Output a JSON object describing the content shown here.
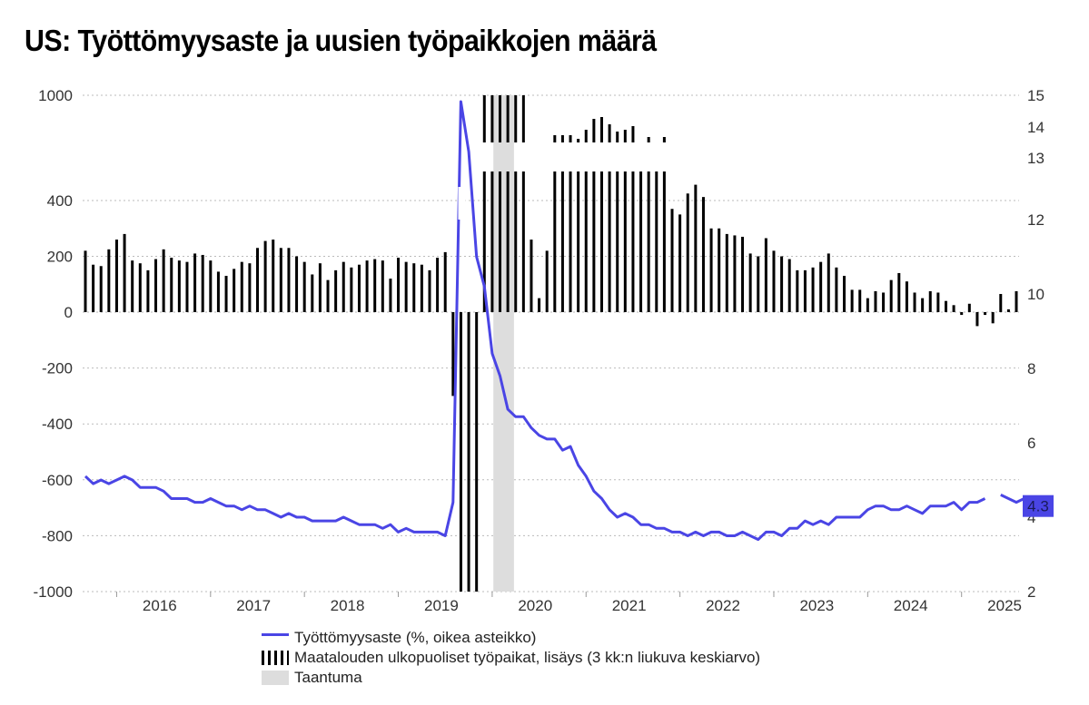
{
  "title": "US: Työttömyysaste ja uusien työpaikkojen määrä",
  "chart_data": {
    "type": "bar+line",
    "title": "US: Työttömyysaste ja uusien työpaikkojen määrä",
    "x_labels": [
      "2016",
      "2017",
      "2018",
      "2019",
      "2020",
      "2021",
      "2022",
      "2023",
      "2024",
      "2025"
    ],
    "left_axis": {
      "ticks": [
        1000,
        400,
        200,
        0,
        -200,
        -400,
        -600,
        -800,
        -1000
      ],
      "range": [
        -1000,
        1000
      ]
    },
    "right_axis": {
      "ticks": [
        15,
        14,
        13,
        12,
        10,
        8,
        6,
        4,
        2
      ],
      "range": [
        2,
        15
      ]
    },
    "bar_series": {
      "name": "Maatalouden ulkopuoliset työpaikat, lisäys (3 kk:n liukuva keskiarvo)",
      "start": "2015-09",
      "values": [
        220,
        170,
        165,
        225,
        260,
        280,
        185,
        175,
        150,
        190,
        225,
        195,
        185,
        180,
        210,
        205,
        185,
        145,
        130,
        155,
        180,
        175,
        230,
        255,
        260,
        230,
        230,
        200,
        180,
        135,
        175,
        115,
        150,
        180,
        160,
        170,
        185,
        190,
        185,
        120,
        195,
        180,
        175,
        170,
        150,
        195,
        215,
        -300,
        -1000,
        -1000,
        -1000,
        1000,
        1000,
        1000,
        1000,
        1000,
        1000,
        260,
        50,
        220,
        1000,
        1000,
        1000,
        1000,
        1000,
        1000,
        1000,
        1000,
        1000,
        1000,
        1000,
        1000,
        1000,
        1000,
        1000,
        370,
        350,
        440,
        490,
        420,
        300,
        300,
        280,
        275,
        270,
        210,
        200,
        265,
        220,
        200,
        190,
        150,
        150,
        160,
        180,
        210,
        160,
        130,
        80,
        80,
        50,
        75,
        70,
        115,
        140,
        110,
        70,
        50,
        75,
        70,
        40,
        25,
        -10,
        30,
        -50,
        -10,
        -40,
        65,
        10,
        75
      ]
    },
    "line_series": {
      "name": "Työttömyysaste (%, oikea asteikko)",
      "start": "2015-09",
      "values": [
        5.1,
        4.9,
        5.0,
        4.9,
        5.0,
        5.1,
        5.0,
        4.8,
        4.8,
        4.8,
        4.7,
        4.5,
        4.5,
        4.5,
        4.4,
        4.4,
        4.5,
        4.4,
        4.3,
        4.3,
        4.2,
        4.3,
        4.2,
        4.2,
        4.1,
        4.0,
        4.1,
        4.0,
        4.0,
        3.9,
        3.9,
        3.9,
        3.9,
        4.0,
        3.9,
        3.8,
        3.8,
        3.8,
        3.7,
        3.8,
        3.6,
        3.7,
        3.6,
        3.6,
        3.6,
        3.6,
        3.5,
        4.4,
        14.8,
        13.2,
        11.0,
        10.2,
        8.4,
        7.8,
        6.9,
        6.7,
        6.7,
        6.4,
        6.2,
        6.1,
        6.1,
        5.8,
        5.9,
        5.4,
        5.1,
        4.7,
        4.5,
        4.2,
        4.0,
        4.1,
        4.0,
        3.8,
        3.8,
        3.7,
        3.7,
        3.6,
        3.6,
        3.5,
        3.6,
        3.5,
        3.6,
        3.6,
        3.5,
        3.5,
        3.6,
        3.5,
        3.4,
        3.6,
        3.6,
        3.5,
        3.7,
        3.7,
        3.9,
        3.8,
        3.9,
        3.8,
        4.0,
        4.0,
        4.0,
        4.0,
        4.2,
        4.3,
        4.3,
        4.2,
        4.2,
        4.3,
        4.2,
        4.1,
        4.3,
        4.3,
        4.3,
        4.4,
        4.2,
        4.4,
        4.4,
        4.5,
        null,
        4.6,
        4.5,
        4.4,
        4.5,
        4.3
      ],
      "current_value_label": "4.3"
    },
    "recession": {
      "name": "Taantuma",
      "from": "2020-02",
      "to": "2020-04"
    },
    "colors": {
      "line": "#4a45e5",
      "bars": "#000000",
      "recession": "#dddddd",
      "grid": "#bbbbbb"
    },
    "legend_position": "bottom"
  }
}
